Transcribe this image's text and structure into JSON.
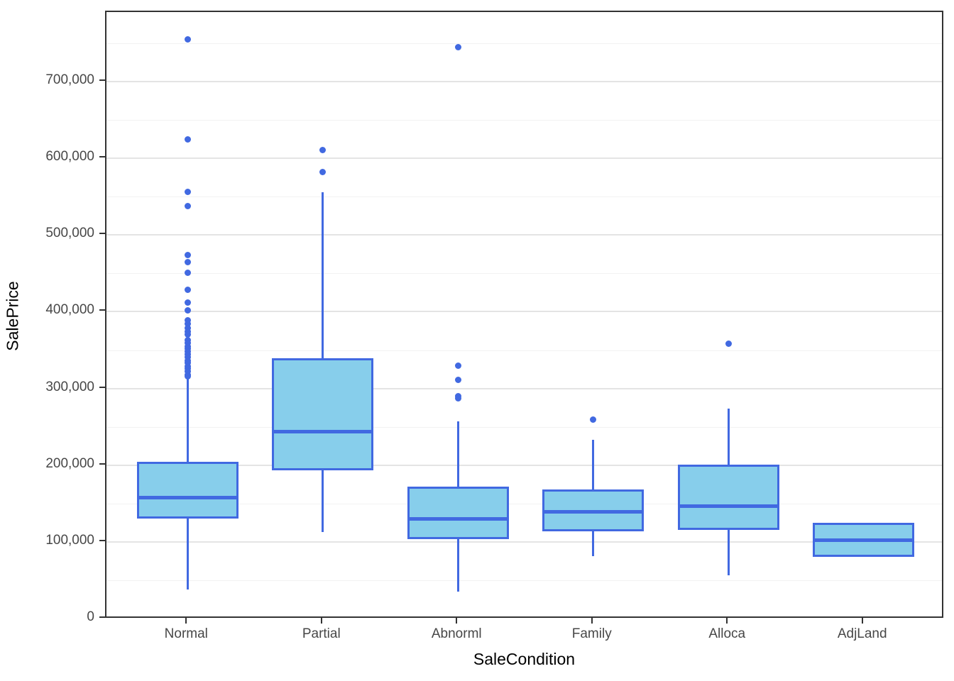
{
  "chart_data": {
    "type": "boxplot",
    "title": "",
    "xlabel": "SaleCondition",
    "ylabel": "SalePrice",
    "categories": [
      "Normal",
      "Partial",
      "Abnorml",
      "Family",
      "Alloca",
      "AdjLand"
    ],
    "y_axis": {
      "min": 0,
      "max": 790000,
      "major_ticks": [
        0,
        100000,
        200000,
        300000,
        400000,
        500000,
        600000,
        700000
      ],
      "tick_labels": [
        "0",
        "100,000",
        "200,000",
        "300,000",
        "400,000",
        "500,000",
        "600,000",
        "700,000"
      ],
      "minor_ticks": [
        50000,
        150000,
        250000,
        350000,
        450000,
        550000,
        650000,
        750000
      ]
    },
    "series": [
      {
        "category": "Normal",
        "whisker_low": 38000,
        "q1": 130000,
        "median": 158000,
        "q3": 204000,
        "whisker_high": 315000,
        "outliers": [
          755000,
          625000,
          556000,
          538000,
          473500,
          465000,
          451000,
          429000,
          411500,
          402000,
          388500,
          384000,
          379000,
          374500,
          370000,
          362500,
          359000,
          355000,
          351500,
          348000,
          344000,
          340500,
          336500,
          333000,
          329000,
          325500,
          322000,
          318000,
          316000
        ]
      },
      {
        "category": "Partial",
        "whisker_low": 113000,
        "q1": 193000,
        "median": 243500,
        "q3": 339500,
        "whisker_high": 556000,
        "outliers": [
          611000,
          582000
        ]
      },
      {
        "category": "Abnorml",
        "whisker_low": 34900,
        "q1": 104000,
        "median": 130000,
        "q3": 172000,
        "whisker_high": 257000,
        "outliers": [
          745000,
          330000,
          311000,
          290000,
          287000
        ]
      },
      {
        "category": "Family",
        "whisker_low": 81000,
        "q1": 114000,
        "median": 139000,
        "q3": 168500,
        "whisker_high": 233000,
        "outliers": [
          259000
        ]
      },
      {
        "category": "Alloca",
        "whisker_low": 56000,
        "q1": 116000,
        "median": 147000,
        "q3": 201000,
        "whisker_high": 274000,
        "outliers": [
          358000
        ]
      },
      {
        "category": "AdjLand",
        "whisker_low": 80500,
        "q1": 80500,
        "median": 102000,
        "q3": 125000,
        "whisker_high": 125000,
        "outliers": []
      }
    ],
    "colors": {
      "box_fill": "#87CEEB",
      "box_line": "#4169E1",
      "grid_major": "#E4E4E4",
      "grid_minor": "#F2F2F2",
      "panel_border": "#333333",
      "tick_text": "#474747",
      "title_text": "#000000"
    },
    "layout_hints": {
      "grid": true,
      "legend": "none",
      "box_width_fraction": 0.75
    }
  }
}
